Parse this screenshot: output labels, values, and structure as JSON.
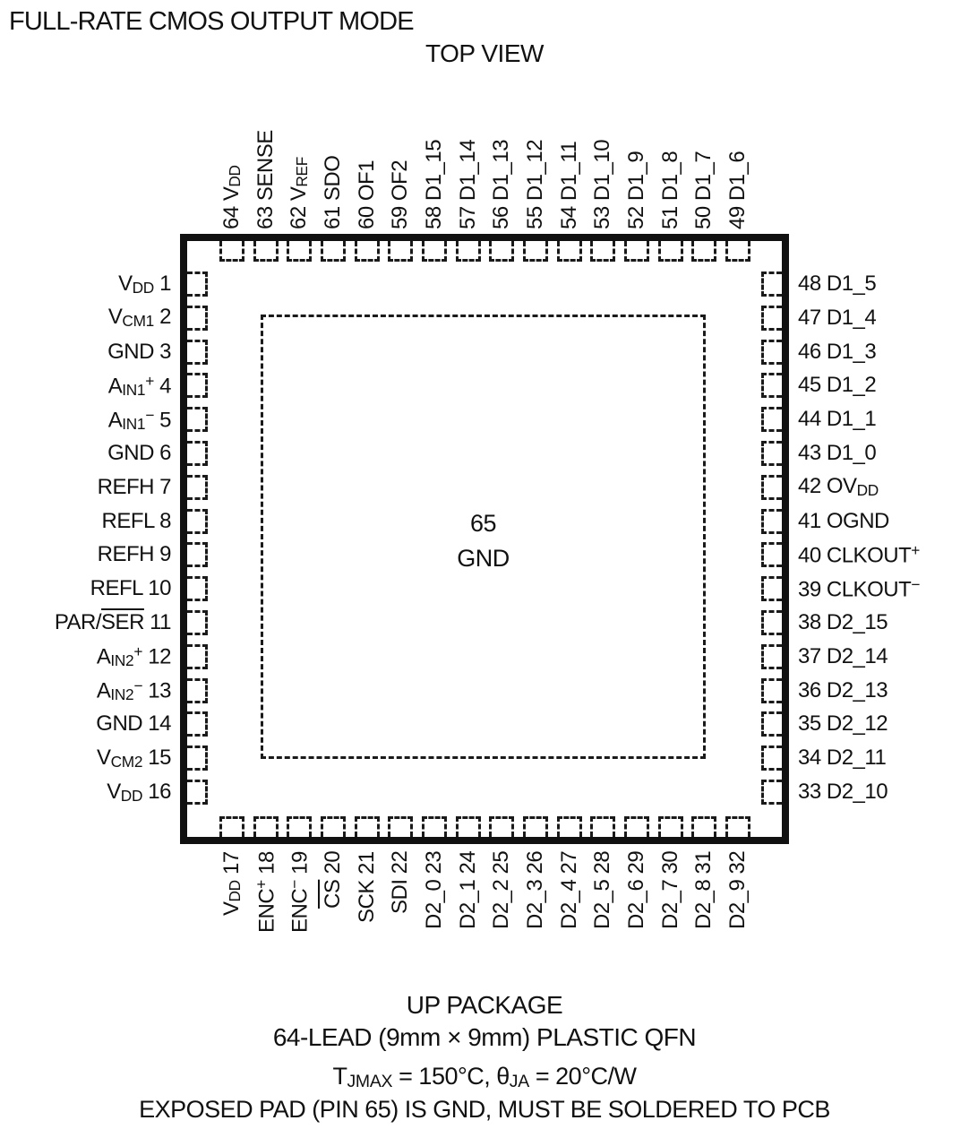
{
  "header": {
    "title": "FULL-RATE CMOS OUTPUT MODE",
    "view_label": "TOP VIEW"
  },
  "colors": {
    "ink": "#111111",
    "background": "#ffffff"
  },
  "package": {
    "center_pad": {
      "number": "65",
      "name": "GND"
    },
    "pins": {
      "top": [
        {
          "num": "64",
          "name_parts": [
            {
              "t": "V"
            },
            {
              "t": "DD",
              "s": "sub"
            }
          ]
        },
        {
          "num": "63",
          "name_parts": [
            {
              "t": "SENSE"
            }
          ]
        },
        {
          "num": "62",
          "name_parts": [
            {
              "t": "V"
            },
            {
              "t": "REF",
              "s": "sub"
            }
          ]
        },
        {
          "num": "61",
          "name_parts": [
            {
              "t": "SDO"
            }
          ]
        },
        {
          "num": "60",
          "name_parts": [
            {
              "t": "OF1"
            }
          ]
        },
        {
          "num": "59",
          "name_parts": [
            {
              "t": "OF2"
            }
          ]
        },
        {
          "num": "58",
          "name_parts": [
            {
              "t": "D1_15"
            }
          ]
        },
        {
          "num": "57",
          "name_parts": [
            {
              "t": "D1_14"
            }
          ]
        },
        {
          "num": "56",
          "name_parts": [
            {
              "t": "D1_13"
            }
          ]
        },
        {
          "num": "55",
          "name_parts": [
            {
              "t": "D1_12"
            }
          ]
        },
        {
          "num": "54",
          "name_parts": [
            {
              "t": "D1_11"
            }
          ]
        },
        {
          "num": "53",
          "name_parts": [
            {
              "t": "D1_10"
            }
          ]
        },
        {
          "num": "52",
          "name_parts": [
            {
              "t": "D1_9"
            }
          ]
        },
        {
          "num": "51",
          "name_parts": [
            {
              "t": "D1_8"
            }
          ]
        },
        {
          "num": "50",
          "name_parts": [
            {
              "t": "D1_7"
            }
          ]
        },
        {
          "num": "49",
          "name_parts": [
            {
              "t": "D1_6"
            }
          ]
        }
      ],
      "left": [
        {
          "num": "1",
          "name_parts": [
            {
              "t": "V"
            },
            {
              "t": "DD",
              "s": "sub"
            }
          ]
        },
        {
          "num": "2",
          "name_parts": [
            {
              "t": "V"
            },
            {
              "t": "CM1",
              "s": "sub"
            }
          ]
        },
        {
          "num": "3",
          "name_parts": [
            {
              "t": "GND"
            }
          ]
        },
        {
          "num": "4",
          "name_parts": [
            {
              "t": "A"
            },
            {
              "t": "IN1",
              "s": "sub"
            },
            {
              "t": "+",
              "s": "sup"
            }
          ]
        },
        {
          "num": "5",
          "name_parts": [
            {
              "t": "A"
            },
            {
              "t": "IN1",
              "s": "sub"
            },
            {
              "t": "−",
              "s": "sup"
            }
          ]
        },
        {
          "num": "6",
          "name_parts": [
            {
              "t": "GND"
            }
          ]
        },
        {
          "num": "7",
          "name_parts": [
            {
              "t": "REFH"
            }
          ]
        },
        {
          "num": "8",
          "name_parts": [
            {
              "t": "REFL"
            }
          ]
        },
        {
          "num": "9",
          "name_parts": [
            {
              "t": "REFH"
            }
          ]
        },
        {
          "num": "10",
          "name_parts": [
            {
              "t": "REFL"
            }
          ]
        },
        {
          "num": "11",
          "name_parts": [
            {
              "t": "PAR/"
            },
            {
              "t": "SER",
              "s": "ovl"
            }
          ]
        },
        {
          "num": "12",
          "name_parts": [
            {
              "t": "A"
            },
            {
              "t": "IN2",
              "s": "sub"
            },
            {
              "t": "+",
              "s": "sup"
            }
          ]
        },
        {
          "num": "13",
          "name_parts": [
            {
              "t": "A"
            },
            {
              "t": "IN2",
              "s": "sub"
            },
            {
              "t": "−",
              "s": "sup"
            }
          ]
        },
        {
          "num": "14",
          "name_parts": [
            {
              "t": "GND"
            }
          ]
        },
        {
          "num": "15",
          "name_parts": [
            {
              "t": "V"
            },
            {
              "t": "CM2",
              "s": "sub"
            }
          ]
        },
        {
          "num": "16",
          "name_parts": [
            {
              "t": "V"
            },
            {
              "t": "DD",
              "s": "sub"
            }
          ]
        }
      ],
      "right": [
        {
          "num": "48",
          "name_parts": [
            {
              "t": "D1_5"
            }
          ]
        },
        {
          "num": "47",
          "name_parts": [
            {
              "t": "D1_4"
            }
          ]
        },
        {
          "num": "46",
          "name_parts": [
            {
              "t": "D1_3"
            }
          ]
        },
        {
          "num": "45",
          "name_parts": [
            {
              "t": "D1_2"
            }
          ]
        },
        {
          "num": "44",
          "name_parts": [
            {
              "t": "D1_1"
            }
          ]
        },
        {
          "num": "43",
          "name_parts": [
            {
              "t": "D1_0"
            }
          ]
        },
        {
          "num": "42",
          "name_parts": [
            {
              "t": "OV"
            },
            {
              "t": "DD",
              "s": "sub"
            }
          ]
        },
        {
          "num": "41",
          "name_parts": [
            {
              "t": "OGND"
            }
          ]
        },
        {
          "num": "40",
          "name_parts": [
            {
              "t": "CLKOUT"
            },
            {
              "t": "+",
              "s": "sup"
            }
          ]
        },
        {
          "num": "39",
          "name_parts": [
            {
              "t": "CLKOUT"
            },
            {
              "t": "−",
              "s": "sup"
            }
          ]
        },
        {
          "num": "38",
          "name_parts": [
            {
              "t": "D2_15"
            }
          ]
        },
        {
          "num": "37",
          "name_parts": [
            {
              "t": "D2_14"
            }
          ]
        },
        {
          "num": "36",
          "name_parts": [
            {
              "t": "D2_13"
            }
          ]
        },
        {
          "num": "35",
          "name_parts": [
            {
              "t": "D2_12"
            }
          ]
        },
        {
          "num": "34",
          "name_parts": [
            {
              "t": "D2_11"
            }
          ]
        },
        {
          "num": "33",
          "name_parts": [
            {
              "t": "D2_10"
            }
          ]
        }
      ],
      "bottom": [
        {
          "num": "17",
          "name_parts": [
            {
              "t": "V"
            },
            {
              "t": "DD",
              "s": "sub"
            }
          ]
        },
        {
          "num": "18",
          "name_parts": [
            {
              "t": "ENC"
            },
            {
              "t": "+",
              "s": "sup"
            }
          ]
        },
        {
          "num": "19",
          "name_parts": [
            {
              "t": "ENC"
            },
            {
              "t": "−",
              "s": "sup"
            }
          ]
        },
        {
          "num": "20",
          "name_parts": [
            {
              "t": "CS",
              "s": "ovl"
            }
          ]
        },
        {
          "num": "21",
          "name_parts": [
            {
              "t": "SCK"
            }
          ]
        },
        {
          "num": "22",
          "name_parts": [
            {
              "t": "SDI"
            }
          ]
        },
        {
          "num": "23",
          "name_parts": [
            {
              "t": "D2_0"
            }
          ]
        },
        {
          "num": "24",
          "name_parts": [
            {
              "t": "D2_1"
            }
          ]
        },
        {
          "num": "25",
          "name_parts": [
            {
              "t": "D2_2"
            }
          ]
        },
        {
          "num": "26",
          "name_parts": [
            {
              "t": "D2_3"
            }
          ]
        },
        {
          "num": "27",
          "name_parts": [
            {
              "t": "D2_4"
            }
          ]
        },
        {
          "num": "28",
          "name_parts": [
            {
              "t": "D2_5"
            }
          ]
        },
        {
          "num": "29",
          "name_parts": [
            {
              "t": "D2_6"
            }
          ]
        },
        {
          "num": "30",
          "name_parts": [
            {
              "t": "D2_7"
            }
          ]
        },
        {
          "num": "31",
          "name_parts": [
            {
              "t": "D2_8"
            }
          ]
        },
        {
          "num": "32",
          "name_parts": [
            {
              "t": "D2_9"
            }
          ]
        }
      ]
    }
  },
  "footer": {
    "line1": "UP PACKAGE",
    "line2": "64-LEAD (9mm × 9mm) PLASTIC QFN",
    "line3_parts": [
      {
        "t": "T"
      },
      {
        "t": "JMAX",
        "s": "sub"
      },
      {
        "t": " = 150°C, θ"
      },
      {
        "t": "JA",
        "s": "sub"
      },
      {
        "t": " = 20°C/W"
      }
    ],
    "line4": "EXPOSED PAD (PIN 65) IS GND, MUST BE SOLDERED TO PCB"
  }
}
